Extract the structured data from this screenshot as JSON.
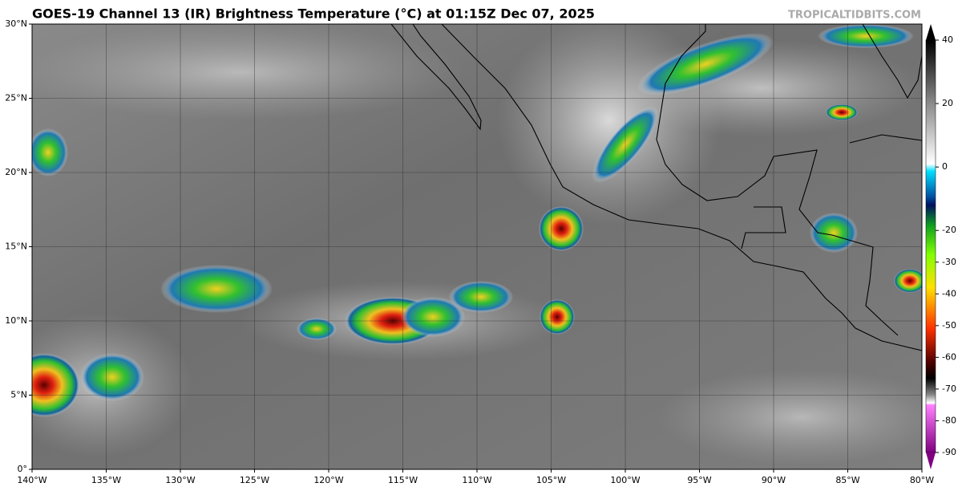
{
  "header": {
    "title": "GOES-19 Channel 13 (IR) Brightness Temperature (°C) at 01:15Z Dec 07, 2025",
    "source": "TROPICALTIDBITS.COM"
  },
  "map": {
    "lon_labels": [
      "140°W",
      "135°W",
      "130°W",
      "125°W",
      "120°W",
      "115°W",
      "110°W",
      "105°W",
      "100°W",
      "95°W",
      "90°W",
      "85°W",
      "80°W"
    ],
    "lat_labels": [
      "0°",
      "5°N",
      "10°N",
      "15°N",
      "20°N",
      "25°N",
      "30°N"
    ]
  },
  "colorbar": {
    "labels": [
      40,
      20,
      0,
      -20,
      -30,
      -40,
      -50,
      -60,
      -70,
      -80,
      -90
    ]
  }
}
